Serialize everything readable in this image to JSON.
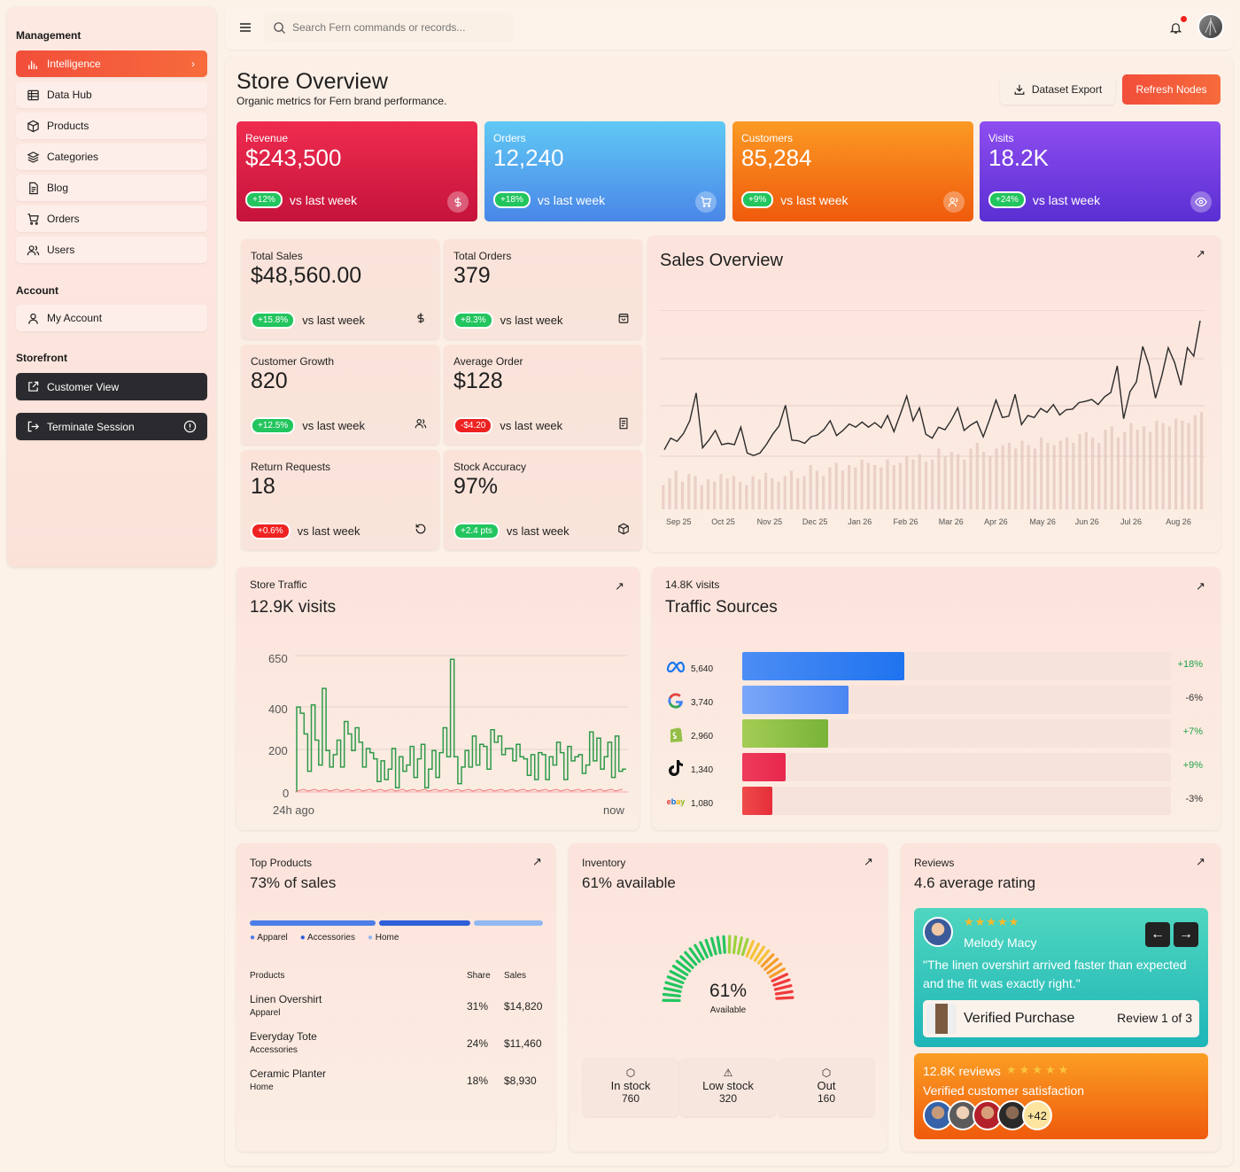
{
  "sidebar": {
    "management_label": "Management",
    "items": [
      {
        "label": "Intelligence"
      },
      {
        "label": "Data Hub"
      },
      {
        "label": "Products"
      },
      {
        "label": "Categories"
      },
      {
        "label": "Blog"
      },
      {
        "label": "Orders"
      },
      {
        "label": "Users"
      }
    ],
    "account_label": "Account",
    "account_items": [
      {
        "label": "My Account"
      }
    ],
    "storefront_label": "Storefront",
    "customer_view": "Customer View",
    "terminate": "Terminate Session"
  },
  "search": {
    "placeholder": "Search Fern commands or records..."
  },
  "header": {
    "title": "Store Overview",
    "subtitle": "Organic metrics for Fern brand performance.",
    "export_label": "Dataset Export",
    "refresh_label": "Refresh Nodes"
  },
  "kpis": [
    {
      "label": "Revenue",
      "value": "$243,500",
      "delta": "+12%",
      "note": "vs last week",
      "color_a": "#ef2c4f",
      "color_b": "#c5133b"
    },
    {
      "label": "Orders",
      "value": "12,240",
      "delta": "+18%",
      "note": "vs last week",
      "color_a": "#60c9f4",
      "color_b": "#4a86e8"
    },
    {
      "label": "Customers",
      "value": "85,284",
      "delta": "+9%",
      "note": "vs last week",
      "color_a": "#fb9a24",
      "color_b": "#ef5a0c"
    },
    {
      "label": "Visits",
      "value": "18.2K",
      "delta": "+24%",
      "note": "vs last week",
      "color_a": "#8e4df0",
      "color_b": "#5a2fd2"
    }
  ],
  "stats": [
    {
      "label": "Total Sales",
      "value": "$48,560.00",
      "delta": "+15.8%",
      "note": "vs last week",
      "neg": false,
      "icon": "dollar-icon"
    },
    {
      "label": "Total Orders",
      "value": "379",
      "delta": "+8.3%",
      "note": "vs last week",
      "neg": false,
      "icon": "bag-icon"
    },
    {
      "label": "Customer Growth",
      "value": "820",
      "delta": "+12.5%",
      "note": "vs last week",
      "neg": false,
      "icon": "users-icon"
    },
    {
      "label": "Average Order",
      "value": "$128",
      "delta": "-$4.20",
      "note": "vs last week",
      "neg": true,
      "icon": "receipt-icon"
    },
    {
      "label": "Return Requests",
      "value": "18",
      "delta": "+0.6%",
      "note": "vs last week",
      "neg": true,
      "icon": "rotate-icon"
    },
    {
      "label": "Stock Accuracy",
      "value": "97%",
      "delta": "+2.4 pts",
      "note": "vs last week",
      "neg": false,
      "icon": "box-icon"
    }
  ],
  "sales_overview": {
    "title": "Sales Overview"
  },
  "chart_data": [
    {
      "type": "line",
      "title": "Sales Overview",
      "x_ticks": [
        "Sep 25",
        "Oct 25",
        "Nov 25",
        "Dec 25",
        "Jan 26",
        "Feb 26",
        "Mar 26",
        "Apr 26",
        "May 26",
        "Jun 26",
        "Jul 26",
        "Aug 26"
      ],
      "series": [
        {
          "values": [
            10,
            28,
            23,
            35,
            55,
            98,
            13,
            25,
            40,
            18,
            20,
            18,
            45,
            5,
            1,
            5,
            18,
            34,
            47,
            79,
            25,
            24,
            20,
            30,
            33,
            41,
            55,
            32,
            40,
            50,
            45,
            53,
            45,
            52,
            44,
            63,
            38,
            65,
            93,
            55,
            75,
            34,
            28,
            45,
            41,
            56,
            75,
            40,
            48,
            54,
            30,
            57,
            87,
            60,
            62,
            96,
            49,
            63,
            60,
            74,
            68,
            80,
            64,
            72,
            73,
            83,
            85,
            88,
            80,
            92,
            99,
            140,
            58,
            100,
            115,
            170,
            140,
            90,
            125,
            168,
            145,
            110,
            168,
            155,
            210
          ]
        }
      ],
      "bars": [
        22,
        28,
        35,
        25,
        32,
        30,
        22,
        27,
        25,
        32,
        28,
        30,
        25,
        22,
        30,
        27,
        33,
        28,
        25,
        30,
        35,
        28,
        30,
        40,
        35,
        30,
        38,
        42,
        35,
        40,
        38,
        45,
        42,
        40,
        38,
        45,
        40,
        42,
        48,
        45,
        50,
        43,
        45,
        55,
        48,
        52,
        50,
        45,
        55,
        60,
        52,
        48,
        55,
        58,
        60,
        55,
        62,
        58,
        55,
        65,
        60,
        58,
        62,
        65,
        60,
        68,
        70,
        65,
        60,
        72,
        75,
        65,
        70,
        78,
        72,
        75,
        70,
        80,
        78,
        75,
        82,
        80,
        78,
        85,
        88
      ]
    },
    {
      "type": "line",
      "title": "Store Traffic",
      "xlabel_left": "24h ago",
      "xlabel_right": "now",
      "y_ticks": [
        0,
        200,
        400,
        650
      ],
      "ylim": [
        0,
        650
      ],
      "series": [
        {
          "values": [
            410,
            380,
            280,
            100,
            420,
            250,
            130,
            500,
            200,
            120,
            180,
            250,
            120,
            340,
            280,
            200,
            310,
            240,
            120,
            210,
            190,
            160,
            50,
            150,
            60,
            110,
            210,
            20,
            170,
            100,
            130,
            220,
            70,
            160,
            230,
            20,
            110,
            200,
            70,
            190,
            310,
            170,
            640,
            170,
            40,
            120,
            200,
            120,
            270,
            130,
            230,
            220,
            110,
            300,
            240,
            270,
            180,
            210,
            210,
            150,
            230,
            170,
            160,
            80,
            180,
            60,
            190,
            180,
            60,
            170,
            130,
            240,
            190,
            60,
            220,
            150,
            170,
            180,
            90,
            130,
            290,
            150,
            260,
            110,
            170,
            240,
            70,
            270,
            100,
            110
          ]
        }
      ]
    },
    {
      "type": "bar",
      "title": "Traffic Sources",
      "subtitle": "14.8K visits",
      "categories": [
        "Meta",
        "Google",
        "Shopify",
        "TikTok",
        "eBay"
      ],
      "values": [
        5640,
        3740,
        2960,
        1340,
        1080
      ],
      "changes": [
        "+18%",
        "-6%",
        "+7%",
        "+9%",
        "-3%"
      ]
    }
  ],
  "traffic": {
    "label": "Store Traffic",
    "value": "12.9K visits",
    "t650": "650",
    "t400": "400",
    "t200": "200",
    "t0": "0",
    "left": "24h ago",
    "right": "now"
  },
  "sources": {
    "subtitle": "14.8K visits",
    "title": "Traffic Sources",
    "rows": [
      {
        "val": "5,640",
        "chg": "+18%",
        "pct": 0.32,
        "color_a": "#4c8df5",
        "color_b": "#1f73ef",
        "chg_color": "#22a34a"
      },
      {
        "val": "3,740",
        "chg": "-6%",
        "pct": 0.21,
        "color_a": "#7aa7f8",
        "color_b": "#4b86f2",
        "chg_color": "#333"
      },
      {
        "val": "2,960",
        "chg": "+7%",
        "pct": 0.17,
        "color_a": "#a4cd55",
        "color_b": "#78b338",
        "chg_color": "#22a34a"
      },
      {
        "val": "1,340",
        "chg": "+9%",
        "pct": 0.085,
        "color_a": "#ee3b5b",
        "color_b": "#e8274e",
        "chg_color": "#22a34a"
      },
      {
        "val": "1,080",
        "chg": "-3%",
        "pct": 0.06,
        "color_a": "#ef4a4a",
        "color_b": "#e52e3a",
        "chg_color": "#333"
      }
    ]
  },
  "top_products": {
    "label": "Top Products",
    "value": "73% of sales",
    "legend": [
      "Apparel",
      "Accessories",
      "Home"
    ],
    "col_product": "Products",
    "col_share": "Share",
    "col_sales": "Sales",
    "rows": [
      {
        "name": "Linen Overshirt",
        "cat": "Apparel",
        "share": "31%",
        "sales": "$14,820"
      },
      {
        "name": "Everyday Tote",
        "cat": "Accessories",
        "share": "24%",
        "sales": "$11,460"
      },
      {
        "name": "Ceramic Planter",
        "cat": "Home",
        "share": "18%",
        "sales": "$8,930"
      }
    ]
  },
  "inventory": {
    "label": "Inventory",
    "value": "61% available",
    "pct": "61%",
    "pct_value": 0.61,
    "pct_label": "Available",
    "in_label": "In stock",
    "in_val": "760",
    "low_label": "Low stock",
    "low_val": "320",
    "out_label": "Out",
    "out_val": "160"
  },
  "reviews": {
    "label": "Reviews",
    "value": "4.6 average rating",
    "name": "Melody Macy",
    "quote": "\"The linen overshirt arrived faster than expected and the fit was exactly right.\"",
    "verified": "Verified Purchase",
    "counter": "Review 1 of 3",
    "count": "12.8K reviews",
    "satisfaction": "Verified customer satisfaction",
    "more": "+42"
  }
}
